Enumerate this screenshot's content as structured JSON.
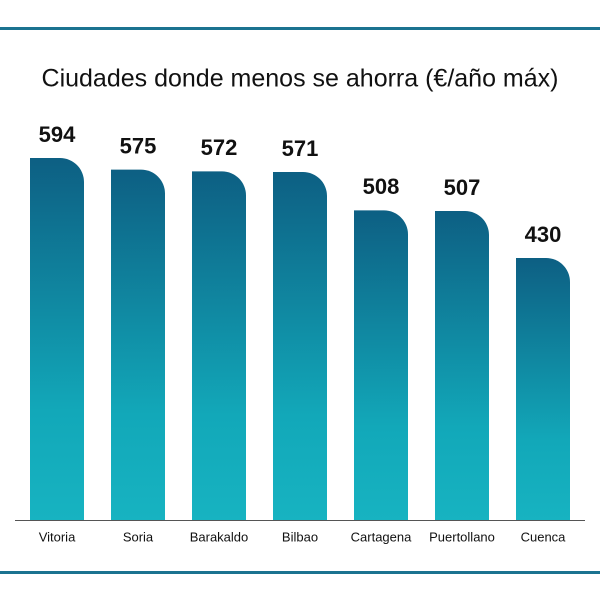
{
  "chart_data": {
    "type": "bar",
    "title": "Ciudades donde menos se ahorra (€/año máx)",
    "categories": [
      "Vitoria",
      "Soria",
      "Barakaldo",
      "Bilbao",
      "Cartagena",
      "Puertollano",
      "Cuenca"
    ],
    "values": [
      594,
      575,
      572,
      571,
      508,
      507,
      430
    ]
  }
}
